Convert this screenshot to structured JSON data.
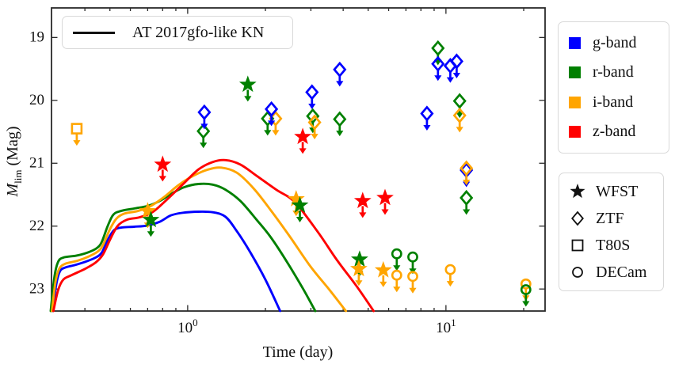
{
  "figure": {
    "xlabel": "Time (day)",
    "ylabel_var": "M",
    "ylabel_sub": "lim",
    "ylabel_rest": " (Mag)",
    "background": "#ffffff",
    "axis_color": "#2a2a2a"
  },
  "legend_model": {
    "label": "AT 2017gfo-like KN",
    "line_color": "#111111"
  },
  "legend_bands": {
    "items": [
      {
        "key": "g",
        "label": "g-band",
        "color": "#0000ff"
      },
      {
        "key": "r",
        "label": "r-band",
        "color": "#008000"
      },
      {
        "key": "i",
        "label": "i-band",
        "color": "#ffa500"
      },
      {
        "key": "z",
        "label": "z-band",
        "color": "#ff0000"
      }
    ]
  },
  "legend_instruments": {
    "items": [
      {
        "key": "WFST",
        "marker": "star",
        "label": "WFST"
      },
      {
        "key": "ZTF",
        "marker": "diamond",
        "label": "ZTF"
      },
      {
        "key": "T80S",
        "marker": "square",
        "label": "T80S"
      },
      {
        "key": "DECam",
        "marker": "circle",
        "label": "DECam"
      }
    ]
  },
  "chart_data": {
    "type": "line",
    "title": "",
    "xlabel": "Time (day)",
    "ylabel": "M_lim (Mag)",
    "x_scale": "log",
    "y_axis_inverted": true,
    "xlim": [
      0.297,
      24.2
    ],
    "ylim_bottom_top": [
      23.35,
      18.53
    ],
    "grid": false,
    "xticks_major": [
      {
        "value": 1,
        "base": "10",
        "exp": "0"
      },
      {
        "value": 10,
        "base": "10",
        "exp": "1"
      }
    ],
    "xticks_minor": [
      0.4,
      0.5,
      0.6,
      0.7,
      0.8,
      0.9,
      2,
      3,
      4,
      5,
      6,
      7,
      8,
      9,
      20
    ],
    "yticks": [
      19,
      20,
      21,
      22,
      23
    ],
    "model_curve_label": "AT 2017gfo-like KN",
    "series": [
      {
        "name": "AT 2017gfo-like KN g-band",
        "band": "g",
        "points": [
          [
            0.3,
            23.35
          ],
          [
            0.31,
            22.92
          ],
          [
            0.32,
            22.72
          ],
          [
            0.335,
            22.66
          ],
          [
            0.365,
            22.62
          ],
          [
            0.4,
            22.57
          ],
          [
            0.44,
            22.5
          ],
          [
            0.465,
            22.42
          ],
          [
            0.49,
            22.22
          ],
          [
            0.52,
            22.06
          ],
          [
            0.56,
            22.02
          ],
          [
            0.62,
            22.01
          ],
          [
            0.7,
            21.99
          ],
          [
            0.78,
            21.93
          ],
          [
            0.86,
            21.83
          ],
          [
            0.95,
            21.79
          ],
          [
            1.1,
            21.77
          ],
          [
            1.25,
            21.78
          ],
          [
            1.4,
            21.85
          ],
          [
            1.55,
            22.08
          ],
          [
            1.75,
            22.42
          ],
          [
            2.0,
            22.85
          ],
          [
            2.28,
            23.35
          ]
        ]
      },
      {
        "name": "AT 2017gfo-like KN r-band",
        "band": "r",
        "points": [
          [
            0.295,
            23.35
          ],
          [
            0.305,
            22.8
          ],
          [
            0.315,
            22.57
          ],
          [
            0.33,
            22.5
          ],
          [
            0.37,
            22.47
          ],
          [
            0.41,
            22.42
          ],
          [
            0.445,
            22.35
          ],
          [
            0.465,
            22.25
          ],
          [
            0.49,
            22.0
          ],
          [
            0.515,
            21.82
          ],
          [
            0.55,
            21.76
          ],
          [
            0.62,
            21.72
          ],
          [
            0.7,
            21.68
          ],
          [
            0.78,
            21.6
          ],
          [
            0.87,
            21.48
          ],
          [
            0.97,
            21.38
          ],
          [
            1.1,
            21.33
          ],
          [
            1.25,
            21.34
          ],
          [
            1.4,
            21.42
          ],
          [
            1.6,
            21.6
          ],
          [
            1.85,
            21.9
          ],
          [
            2.1,
            22.18
          ],
          [
            2.45,
            22.6
          ],
          [
            2.8,
            23.0
          ],
          [
            3.12,
            23.35
          ]
        ]
      },
      {
        "name": "AT 2017gfo-like KN i-band",
        "band": "i",
        "points": [
          [
            0.298,
            23.35
          ],
          [
            0.308,
            22.88
          ],
          [
            0.318,
            22.68
          ],
          [
            0.335,
            22.6
          ],
          [
            0.375,
            22.55
          ],
          [
            0.415,
            22.48
          ],
          [
            0.45,
            22.4
          ],
          [
            0.47,
            22.3
          ],
          [
            0.5,
            22.05
          ],
          [
            0.53,
            21.88
          ],
          [
            0.57,
            21.8
          ],
          [
            0.64,
            21.76
          ],
          [
            0.72,
            21.68
          ],
          [
            0.82,
            21.52
          ],
          [
            0.92,
            21.35
          ],
          [
            1.05,
            21.2
          ],
          [
            1.2,
            21.1
          ],
          [
            1.35,
            21.07
          ],
          [
            1.55,
            21.15
          ],
          [
            1.8,
            21.4
          ],
          [
            2.1,
            21.75
          ],
          [
            2.5,
            22.18
          ],
          [
            3.0,
            22.65
          ],
          [
            3.55,
            23.02
          ],
          [
            4.1,
            23.35
          ]
        ]
      },
      {
        "name": "AT 2017gfo-like KN z-band",
        "band": "z",
        "points": [
          [
            0.302,
            23.35
          ],
          [
            0.315,
            23.02
          ],
          [
            0.33,
            22.85
          ],
          [
            0.355,
            22.78
          ],
          [
            0.4,
            22.68
          ],
          [
            0.44,
            22.58
          ],
          [
            0.47,
            22.45
          ],
          [
            0.5,
            22.22
          ],
          [
            0.535,
            22.0
          ],
          [
            0.58,
            21.9
          ],
          [
            0.65,
            21.86
          ],
          [
            0.73,
            21.78
          ],
          [
            0.83,
            21.58
          ],
          [
            0.95,
            21.35
          ],
          [
            1.1,
            21.1
          ],
          [
            1.25,
            20.98
          ],
          [
            1.4,
            20.95
          ],
          [
            1.6,
            21.02
          ],
          [
            1.85,
            21.2
          ],
          [
            2.2,
            21.42
          ],
          [
            2.6,
            21.62
          ],
          [
            3.2,
            22.1
          ],
          [
            3.8,
            22.55
          ],
          [
            4.5,
            22.95
          ],
          [
            5.25,
            23.35
          ]
        ]
      }
    ],
    "upper_limits": [
      {
        "instrument": "T80S",
        "band": "i",
        "t": 0.372,
        "mag": 20.45
      },
      {
        "instrument": "WFST",
        "band": "i",
        "t": 0.7,
        "mag": 21.76
      },
      {
        "instrument": "WFST",
        "band": "r",
        "t": 0.72,
        "mag": 21.9
      },
      {
        "instrument": "WFST",
        "band": "z",
        "t": 0.8,
        "mag": 21.02
      },
      {
        "instrument": "ZTF",
        "band": "r",
        "t": 1.15,
        "mag": 20.49
      },
      {
        "instrument": "ZTF",
        "band": "g",
        "t": 1.16,
        "mag": 20.19
      },
      {
        "instrument": "WFST",
        "band": "r",
        "t": 1.71,
        "mag": 19.75
      },
      {
        "instrument": "ZTF",
        "band": "r",
        "t": 2.04,
        "mag": 20.29
      },
      {
        "instrument": "ZTF",
        "band": "i",
        "t": 2.19,
        "mag": 20.29
      },
      {
        "instrument": "ZTF",
        "band": "g",
        "t": 2.11,
        "mag": 20.14
      },
      {
        "instrument": "WFST",
        "band": "i",
        "t": 2.63,
        "mag": 21.57
      },
      {
        "instrument": "WFST",
        "band": "r",
        "t": 2.72,
        "mag": 21.67
      },
      {
        "instrument": "WFST",
        "band": "z",
        "t": 2.79,
        "mag": 20.58
      },
      {
        "instrument": "ZTF",
        "band": "g",
        "t": 3.03,
        "mag": 19.87
      },
      {
        "instrument": "ZTF",
        "band": "r",
        "t": 3.05,
        "mag": 20.25
      },
      {
        "instrument": "ZTF",
        "band": "i",
        "t": 3.1,
        "mag": 20.35
      },
      {
        "instrument": "ZTF",
        "band": "g",
        "t": 3.88,
        "mag": 19.51
      },
      {
        "instrument": "ZTF",
        "band": "r",
        "t": 3.88,
        "mag": 20.3
      },
      {
        "instrument": "WFST",
        "band": "r",
        "t": 4.63,
        "mag": 22.53
      },
      {
        "instrument": "WFST",
        "band": "i",
        "t": 4.6,
        "mag": 22.68
      },
      {
        "instrument": "WFST",
        "band": "z",
        "t": 4.76,
        "mag": 21.6
      },
      {
        "instrument": "WFST",
        "band": "z",
        "t": 5.81,
        "mag": 21.55
      },
      {
        "instrument": "WFST",
        "band": "i",
        "t": 5.72,
        "mag": 22.7
      },
      {
        "instrument": "DECam",
        "band": "r",
        "t": 6.45,
        "mag": 22.44
      },
      {
        "instrument": "DECam",
        "band": "i",
        "t": 6.45,
        "mag": 22.78
      },
      {
        "instrument": "DECam",
        "band": "r",
        "t": 7.44,
        "mag": 22.49
      },
      {
        "instrument": "DECam",
        "band": "i",
        "t": 7.44,
        "mag": 22.8
      },
      {
        "instrument": "ZTF",
        "band": "g",
        "t": 8.44,
        "mag": 20.21
      },
      {
        "instrument": "ZTF",
        "band": "r",
        "t": 9.31,
        "mag": 19.17
      },
      {
        "instrument": "ZTF",
        "band": "g",
        "t": 9.31,
        "mag": 19.42
      },
      {
        "instrument": "ZTF",
        "band": "g",
        "t": 10.4,
        "mag": 19.45
      },
      {
        "instrument": "ZTF",
        "band": "g",
        "t": 11.0,
        "mag": 19.38
      },
      {
        "instrument": "DECam",
        "band": "i",
        "t": 10.4,
        "mag": 22.69
      },
      {
        "instrument": "ZTF",
        "band": "r",
        "t": 11.3,
        "mag": 20.01
      },
      {
        "instrument": "ZTF",
        "band": "i",
        "t": 11.3,
        "mag": 20.24
      },
      {
        "instrument": "ZTF",
        "band": "g",
        "t": 12.0,
        "mag": 21.11
      },
      {
        "instrument": "ZTF",
        "band": "i",
        "t": 12.0,
        "mag": 21.08
      },
      {
        "instrument": "ZTF",
        "band": "r",
        "t": 12.0,
        "mag": 21.55
      },
      {
        "instrument": "DECam",
        "band": "i",
        "t": 20.4,
        "mag": 22.92
      },
      {
        "instrument": "DECam",
        "band": "r",
        "t": 20.4,
        "mag": 23.01
      }
    ]
  }
}
